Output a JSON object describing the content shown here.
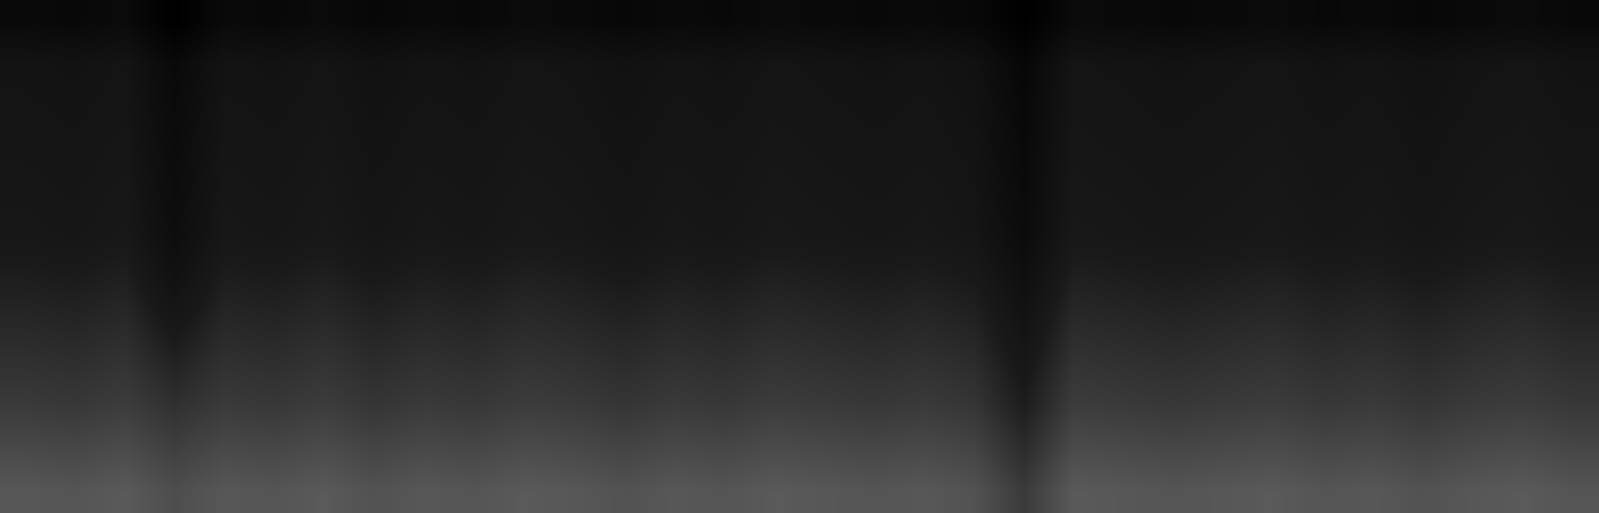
{
  "chart_data": {
    "type": "heatmap",
    "tick_labels": false,
    "cells": [
      [
        10,
        9,
        11,
        0,
        10,
        9,
        11,
        8,
        10,
        9,
        11,
        10,
        8,
        10,
        9,
        11,
        10,
        9,
        10,
        8,
        0,
        11,
        10,
        9,
        10,
        11,
        9,
        10,
        8,
        10,
        11,
        9
      ],
      [
        20,
        19,
        21,
        10,
        20,
        19,
        21,
        18,
        20,
        19,
        21,
        20,
        18,
        20,
        19,
        21,
        20,
        19,
        20,
        18,
        8,
        21,
        20,
        19,
        20,
        21,
        19,
        20,
        18,
        20,
        21,
        19
      ],
      [
        21,
        20,
        22,
        11,
        21,
        20,
        22,
        19,
        21,
        20,
        22,
        21,
        19,
        21,
        20,
        22,
        21,
        20,
        21,
        19,
        9,
        22,
        21,
        20,
        21,
        22,
        20,
        21,
        19,
        21,
        22,
        20
      ],
      [
        22,
        21,
        23,
        12,
        22,
        21,
        23,
        20,
        22,
        21,
        23,
        22,
        20,
        22,
        21,
        23,
        22,
        21,
        22,
        20,
        10,
        23,
        22,
        21,
        22,
        23,
        21,
        22,
        20,
        22,
        23,
        21
      ],
      [
        23,
        22,
        24,
        13,
        23,
        22,
        24,
        21,
        23,
        22,
        24,
        23,
        21,
        23,
        22,
        24,
        23,
        22,
        23,
        21,
        11,
        24,
        23,
        22,
        23,
        24,
        22,
        23,
        21,
        23,
        24,
        22
      ],
      [
        24,
        23,
        25,
        14,
        24,
        23,
        25,
        22,
        24,
        23,
        25,
        24,
        22,
        24,
        23,
        25,
        24,
        23,
        24,
        22,
        12,
        25,
        24,
        23,
        24,
        25,
        23,
        24,
        22,
        24,
        25,
        23
      ],
      [
        28,
        27,
        29,
        18,
        28,
        27,
        29,
        26,
        28,
        27,
        29,
        28,
        26,
        28,
        27,
        29,
        28,
        27,
        28,
        26,
        16,
        29,
        28,
        27,
        28,
        29,
        27,
        28,
        26,
        28,
        29,
        27
      ],
      [
        32,
        31,
        33,
        24,
        32,
        31,
        33,
        30,
        32,
        31,
        33,
        32,
        30,
        32,
        31,
        33,
        32,
        31,
        32,
        30,
        20,
        33,
        32,
        31,
        32,
        33,
        31,
        32,
        30,
        32,
        33,
        31
      ],
      [
        36,
        35,
        37,
        30,
        36,
        35,
        37,
        34,
        36,
        35,
        37,
        36,
        34,
        36,
        35,
        37,
        36,
        35,
        36,
        34,
        24,
        37,
        36,
        35,
        36,
        37,
        35,
        36,
        34,
        36,
        37,
        35
      ],
      [
        40,
        39,
        41,
        36,
        40,
        39,
        41,
        38,
        40,
        39,
        41,
        40,
        38,
        40,
        39,
        41,
        40,
        39,
        40,
        38,
        28,
        41,
        40,
        39,
        40,
        41,
        39,
        40,
        38,
        40,
        41,
        39
      ],
      [
        46,
        45,
        47,
        42,
        46,
        45,
        47,
        44,
        46,
        45,
        47,
        46,
        44,
        46,
        45,
        47,
        46,
        45,
        46,
        44,
        34,
        47,
        46,
        45,
        46,
        47,
        45,
        46,
        44,
        46,
        47,
        45
      ],
      [
        52,
        51,
        53,
        48,
        52,
        51,
        53,
        50,
        52,
        51,
        53,
        52,
        50,
        52,
        51,
        53,
        52,
        51,
        52,
        50,
        40,
        53,
        52,
        51,
        52,
        53,
        51,
        52,
        50,
        52,
        53,
        51
      ]
    ]
  }
}
